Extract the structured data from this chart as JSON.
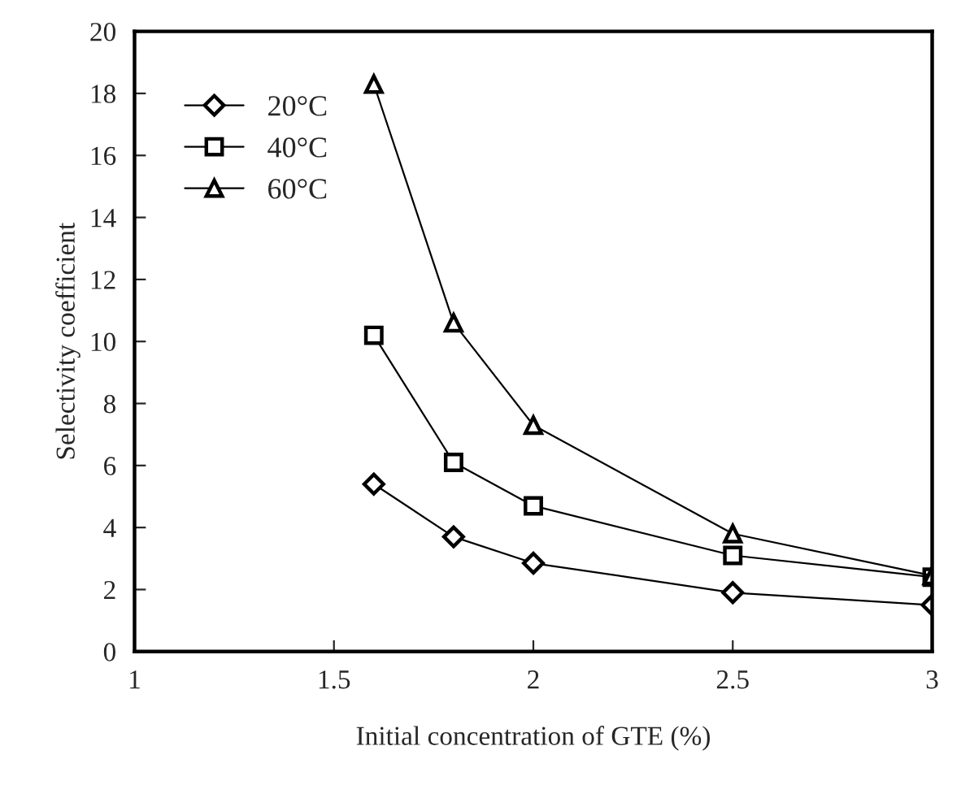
{
  "chart_data": {
    "type": "line",
    "xlabel": "Initial concentration of GTE (%)",
    "ylabel": "Selectivity coefficient",
    "x": [
      1.6,
      1.8,
      2,
      2.5,
      3
    ],
    "series": [
      {
        "name": "20°C",
        "color": "#000000",
        "marker": "diamond",
        "values": [
          5.4,
          3.7,
          2.85,
          1.9,
          1.5
        ]
      },
      {
        "name": "40°C",
        "color": "#000000",
        "marker": "square",
        "values": [
          10.2,
          6.1,
          4.7,
          3.1,
          2.4
        ]
      },
      {
        "name": "60°C",
        "color": "#000000",
        "marker": "triangle",
        "values": [
          18.3,
          10.6,
          7.3,
          3.8,
          2.45
        ]
      }
    ],
    "xlim": [
      1,
      3
    ],
    "xticks": [
      1,
      1.5,
      2,
      2.5,
      3
    ],
    "ylim": [
      0,
      20
    ],
    "yticks": [
      0,
      2,
      4,
      6,
      8,
      10,
      12,
      14,
      16,
      18,
      20
    ],
    "grid": false,
    "legend": "top left",
    "line_style": "solid"
  }
}
